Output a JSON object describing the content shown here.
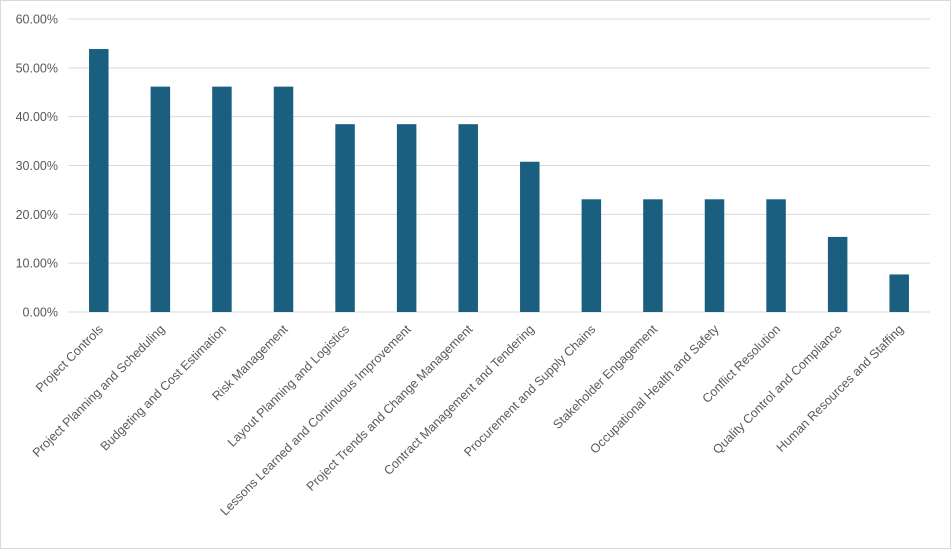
{
  "chart_data": {
    "type": "bar",
    "title": "",
    "xlabel": "",
    "ylabel": "",
    "ylim": [
      0,
      0.6
    ],
    "y_ticks": [
      {
        "value": 0.0,
        "label": "0.00%"
      },
      {
        "value": 0.1,
        "label": "10.00%"
      },
      {
        "value": 0.2,
        "label": "20.00%"
      },
      {
        "value": 0.3,
        "label": "30.00%"
      },
      {
        "value": 0.4,
        "label": "40.00%"
      },
      {
        "value": 0.5,
        "label": "50.00%"
      },
      {
        "value": 0.6,
        "label": "60.00%"
      }
    ],
    "grid": true,
    "legend": "none",
    "bar_color": "#1a5f7f",
    "categories": [
      "Project Controls",
      "Project Planning and Scheduling",
      "Budgeting and Cost Estimation",
      "Risk Management",
      "Layout Planning and Logistics",
      "Lessons Learned and Continuous Improvement",
      "Project Trends and Change Management",
      "Contract Management and Tendering",
      "Procurement and Supply Chains",
      "Stakeholder Engagement",
      "Occupational Health and Safety",
      "Conflict Resolution",
      "Quality Control and Compliance",
      "Human Resources and Staffing"
    ],
    "values": [
      0.5385,
      0.4615,
      0.4615,
      0.4615,
      0.3846,
      0.3846,
      0.3846,
      0.3077,
      0.2308,
      0.2308,
      0.2308,
      0.2308,
      0.1538,
      0.0769
    ]
  }
}
